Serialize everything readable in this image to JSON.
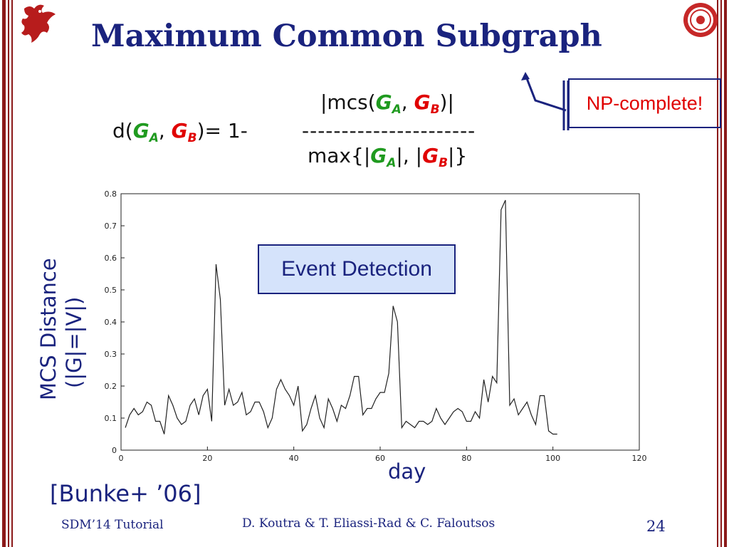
{
  "slide": {
    "title": "Maximum Common Subgraph",
    "formula": {
      "lhs_prefix": "d(",
      "ga_letter": "G",
      "ga_sub": "A",
      "comma": ",",
      "gb_letter": "G",
      "gb_sub": "B",
      "lhs_suffix": ")= 1-",
      "dashes": "----------------------",
      "num_prefix": "|mcs(",
      "num_suffix": ")|",
      "den_prefix": "max{|",
      "den_mid": "|, |",
      "den_suffix": "|}"
    },
    "np_label": "NP-complete!",
    "event_label": "Event Detection",
    "ylabel_line1": "MCS Distance",
    "ylabel_line2": "(|G|=|V|)",
    "xlabel": "day",
    "citation": "[Bunke+ ’06]",
    "footer_left": "SDM’14 Tutorial",
    "footer_center": "D. Koutra & T. Eliassi-Rad & C. Faloutsos",
    "page_number": "24"
  },
  "colors": {
    "accent_dark_blue": "#1a237e",
    "graph_a": "#1f9a1f",
    "graph_b": "#e00000",
    "bar_red": "#8b1a1a",
    "event_fill": "#d5e3fb"
  },
  "icons": {
    "logo_left": "red-dragon-logo",
    "logo_right": "rutgers-seal-logo"
  },
  "chart_data": {
    "type": "line",
    "xlabel": "day",
    "ylabel": "MCS Distance (|G|=|V|)",
    "xlim": [
      0,
      120
    ],
    "ylim": [
      0,
      0.8
    ],
    "x_ticks": [
      0,
      20,
      40,
      60,
      80,
      100,
      120
    ],
    "y_ticks": [
      0,
      0.1,
      0.2,
      0.3,
      0.4,
      0.5,
      0.6,
      0.7,
      0.8
    ],
    "series": [
      {
        "x": [
          1,
          2,
          3,
          4,
          5,
          6,
          7,
          8,
          9,
          10,
          11,
          12,
          13,
          14,
          15,
          16,
          17,
          18,
          19,
          20,
          21,
          22,
          23,
          24,
          25,
          26,
          27,
          28,
          29,
          30,
          31,
          32,
          33,
          34,
          35,
          36,
          37,
          38,
          39,
          40,
          41,
          42,
          43,
          44,
          45,
          46,
          47,
          48,
          49,
          50,
          51,
          52,
          53,
          54,
          55,
          56,
          57,
          58,
          59,
          60,
          61,
          62,
          63,
          64,
          65,
          66,
          67,
          68,
          69,
          70,
          71,
          72,
          73,
          74,
          75,
          76,
          77,
          78,
          79,
          80,
          81,
          82,
          83,
          84,
          85,
          86,
          87,
          88,
          89,
          90,
          91,
          92,
          93,
          94,
          95,
          96,
          97,
          98,
          99,
          100,
          101
        ],
        "y": [
          0.07,
          0.11,
          0.13,
          0.11,
          0.12,
          0.15,
          0.14,
          0.09,
          0.09,
          0.05,
          0.17,
          0.14,
          0.1,
          0.08,
          0.09,
          0.14,
          0.16,
          0.11,
          0.17,
          0.19,
          0.09,
          0.58,
          0.47,
          0.14,
          0.19,
          0.14,
          0.15,
          0.18,
          0.11,
          0.12,
          0.15,
          0.15,
          0.12,
          0.07,
          0.1,
          0.19,
          0.22,
          0.19,
          0.17,
          0.14,
          0.2,
          0.06,
          0.08,
          0.13,
          0.17,
          0.1,
          0.07,
          0.16,
          0.13,
          0.09,
          0.14,
          0.13,
          0.17,
          0.23,
          0.23,
          0.11,
          0.13,
          0.13,
          0.16,
          0.18,
          0.18,
          0.24,
          0.45,
          0.4,
          0.07,
          0.09,
          0.08,
          0.07,
          0.09,
          0.09,
          0.08,
          0.09,
          0.13,
          0.1,
          0.08,
          0.1,
          0.12,
          0.13,
          0.12,
          0.09,
          0.09,
          0.12,
          0.1,
          0.22,
          0.15,
          0.23,
          0.21,
          0.75,
          0.78,
          0.14,
          0.16,
          0.11,
          0.13,
          0.15,
          0.11,
          0.08,
          0.17,
          0.17,
          0.06,
          0.05,
          0.05
        ]
      }
    ]
  }
}
